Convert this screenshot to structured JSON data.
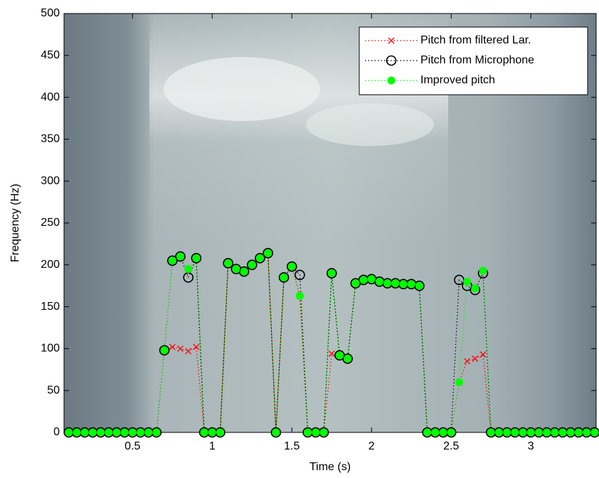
{
  "chart_data": {
    "type": "line",
    "xlabel": "Time (s)",
    "ylabel": "Frequency (Hz)",
    "xlim": [
      0.07,
      3.41
    ],
    "ylim": [
      0,
      500
    ],
    "xticks": [
      0.5,
      1,
      1.5,
      2,
      2.5,
      3
    ],
    "yticks": [
      0,
      50,
      100,
      150,
      200,
      250,
      300,
      350,
      400,
      450,
      500
    ],
    "legend": "upper right",
    "x": [
      0.1,
      0.15,
      0.2,
      0.25,
      0.3,
      0.35,
      0.4,
      0.45,
      0.5,
      0.55,
      0.6,
      0.65,
      0.7,
      0.75,
      0.8,
      0.85,
      0.9,
      0.95,
      1.0,
      1.05,
      1.1,
      1.15,
      1.2,
      1.25,
      1.3,
      1.35,
      1.4,
      1.45,
      1.5,
      1.55,
      1.6,
      1.65,
      1.7,
      1.75,
      1.8,
      1.85,
      1.9,
      1.95,
      2.0,
      2.05,
      2.1,
      2.15,
      2.2,
      2.25,
      2.3,
      2.35,
      2.4,
      2.45,
      2.5,
      2.55,
      2.6,
      2.65,
      2.7,
      2.75,
      2.8,
      2.85,
      2.9,
      2.95,
      3.0,
      3.05,
      3.1,
      3.15,
      3.2,
      3.25,
      3.3,
      3.35,
      3.4
    ],
    "series": [
      {
        "name": "Pitch from filtered Lar.",
        "color": "#ff0000",
        "marker": "x",
        "values": [
          0,
          0,
          0,
          0,
          0,
          0,
          0,
          0,
          0,
          0,
          0,
          0,
          98,
          102,
          100,
          97,
          102,
          0,
          0,
          0,
          202,
          195,
          192,
          200,
          208,
          214,
          0,
          185,
          198,
          163,
          0,
          0,
          0,
          94,
          92,
          88,
          178,
          182,
          183,
          180,
          178,
          178,
          177,
          177,
          175,
          0,
          0,
          0,
          0,
          60,
          85,
          88,
          93,
          0,
          0,
          0,
          0,
          0,
          0,
          0,
          0,
          0,
          0,
          0,
          0,
          0,
          0
        ]
      },
      {
        "name": "Pitch from Microphone",
        "color": "#000000",
        "marker": "o",
        "values": [
          0,
          0,
          0,
          0,
          0,
          0,
          0,
          0,
          0,
          0,
          0,
          0,
          98,
          205,
          210,
          185,
          208,
          0,
          0,
          0,
          202,
          195,
          192,
          200,
          208,
          214,
          0,
          185,
          198,
          188,
          0,
          0,
          0,
          190,
          92,
          88,
          178,
          182,
          183,
          180,
          178,
          178,
          177,
          177,
          175,
          0,
          0,
          0,
          0,
          182,
          175,
          170,
          190,
          0,
          0,
          0,
          0,
          0,
          0,
          0,
          0,
          0,
          0,
          0,
          0,
          0,
          0
        ]
      },
      {
        "name": "Improved pitch",
        "color": "#00ff00",
        "marker": "*",
        "values": [
          0,
          0,
          0,
          0,
          0,
          0,
          0,
          0,
          0,
          0,
          0,
          0,
          98,
          205,
          210,
          195,
          208,
          0,
          0,
          0,
          202,
          195,
          192,
          200,
          208,
          214,
          0,
          185,
          198,
          163,
          0,
          0,
          0,
          190,
          92,
          88,
          178,
          182,
          183,
          180,
          178,
          178,
          177,
          177,
          175,
          0,
          0,
          0,
          0,
          60,
          180,
          172,
          193,
          0,
          0,
          0,
          0,
          0,
          0,
          0,
          0,
          0,
          0,
          0,
          0,
          0,
          0
        ]
      }
    ]
  }
}
